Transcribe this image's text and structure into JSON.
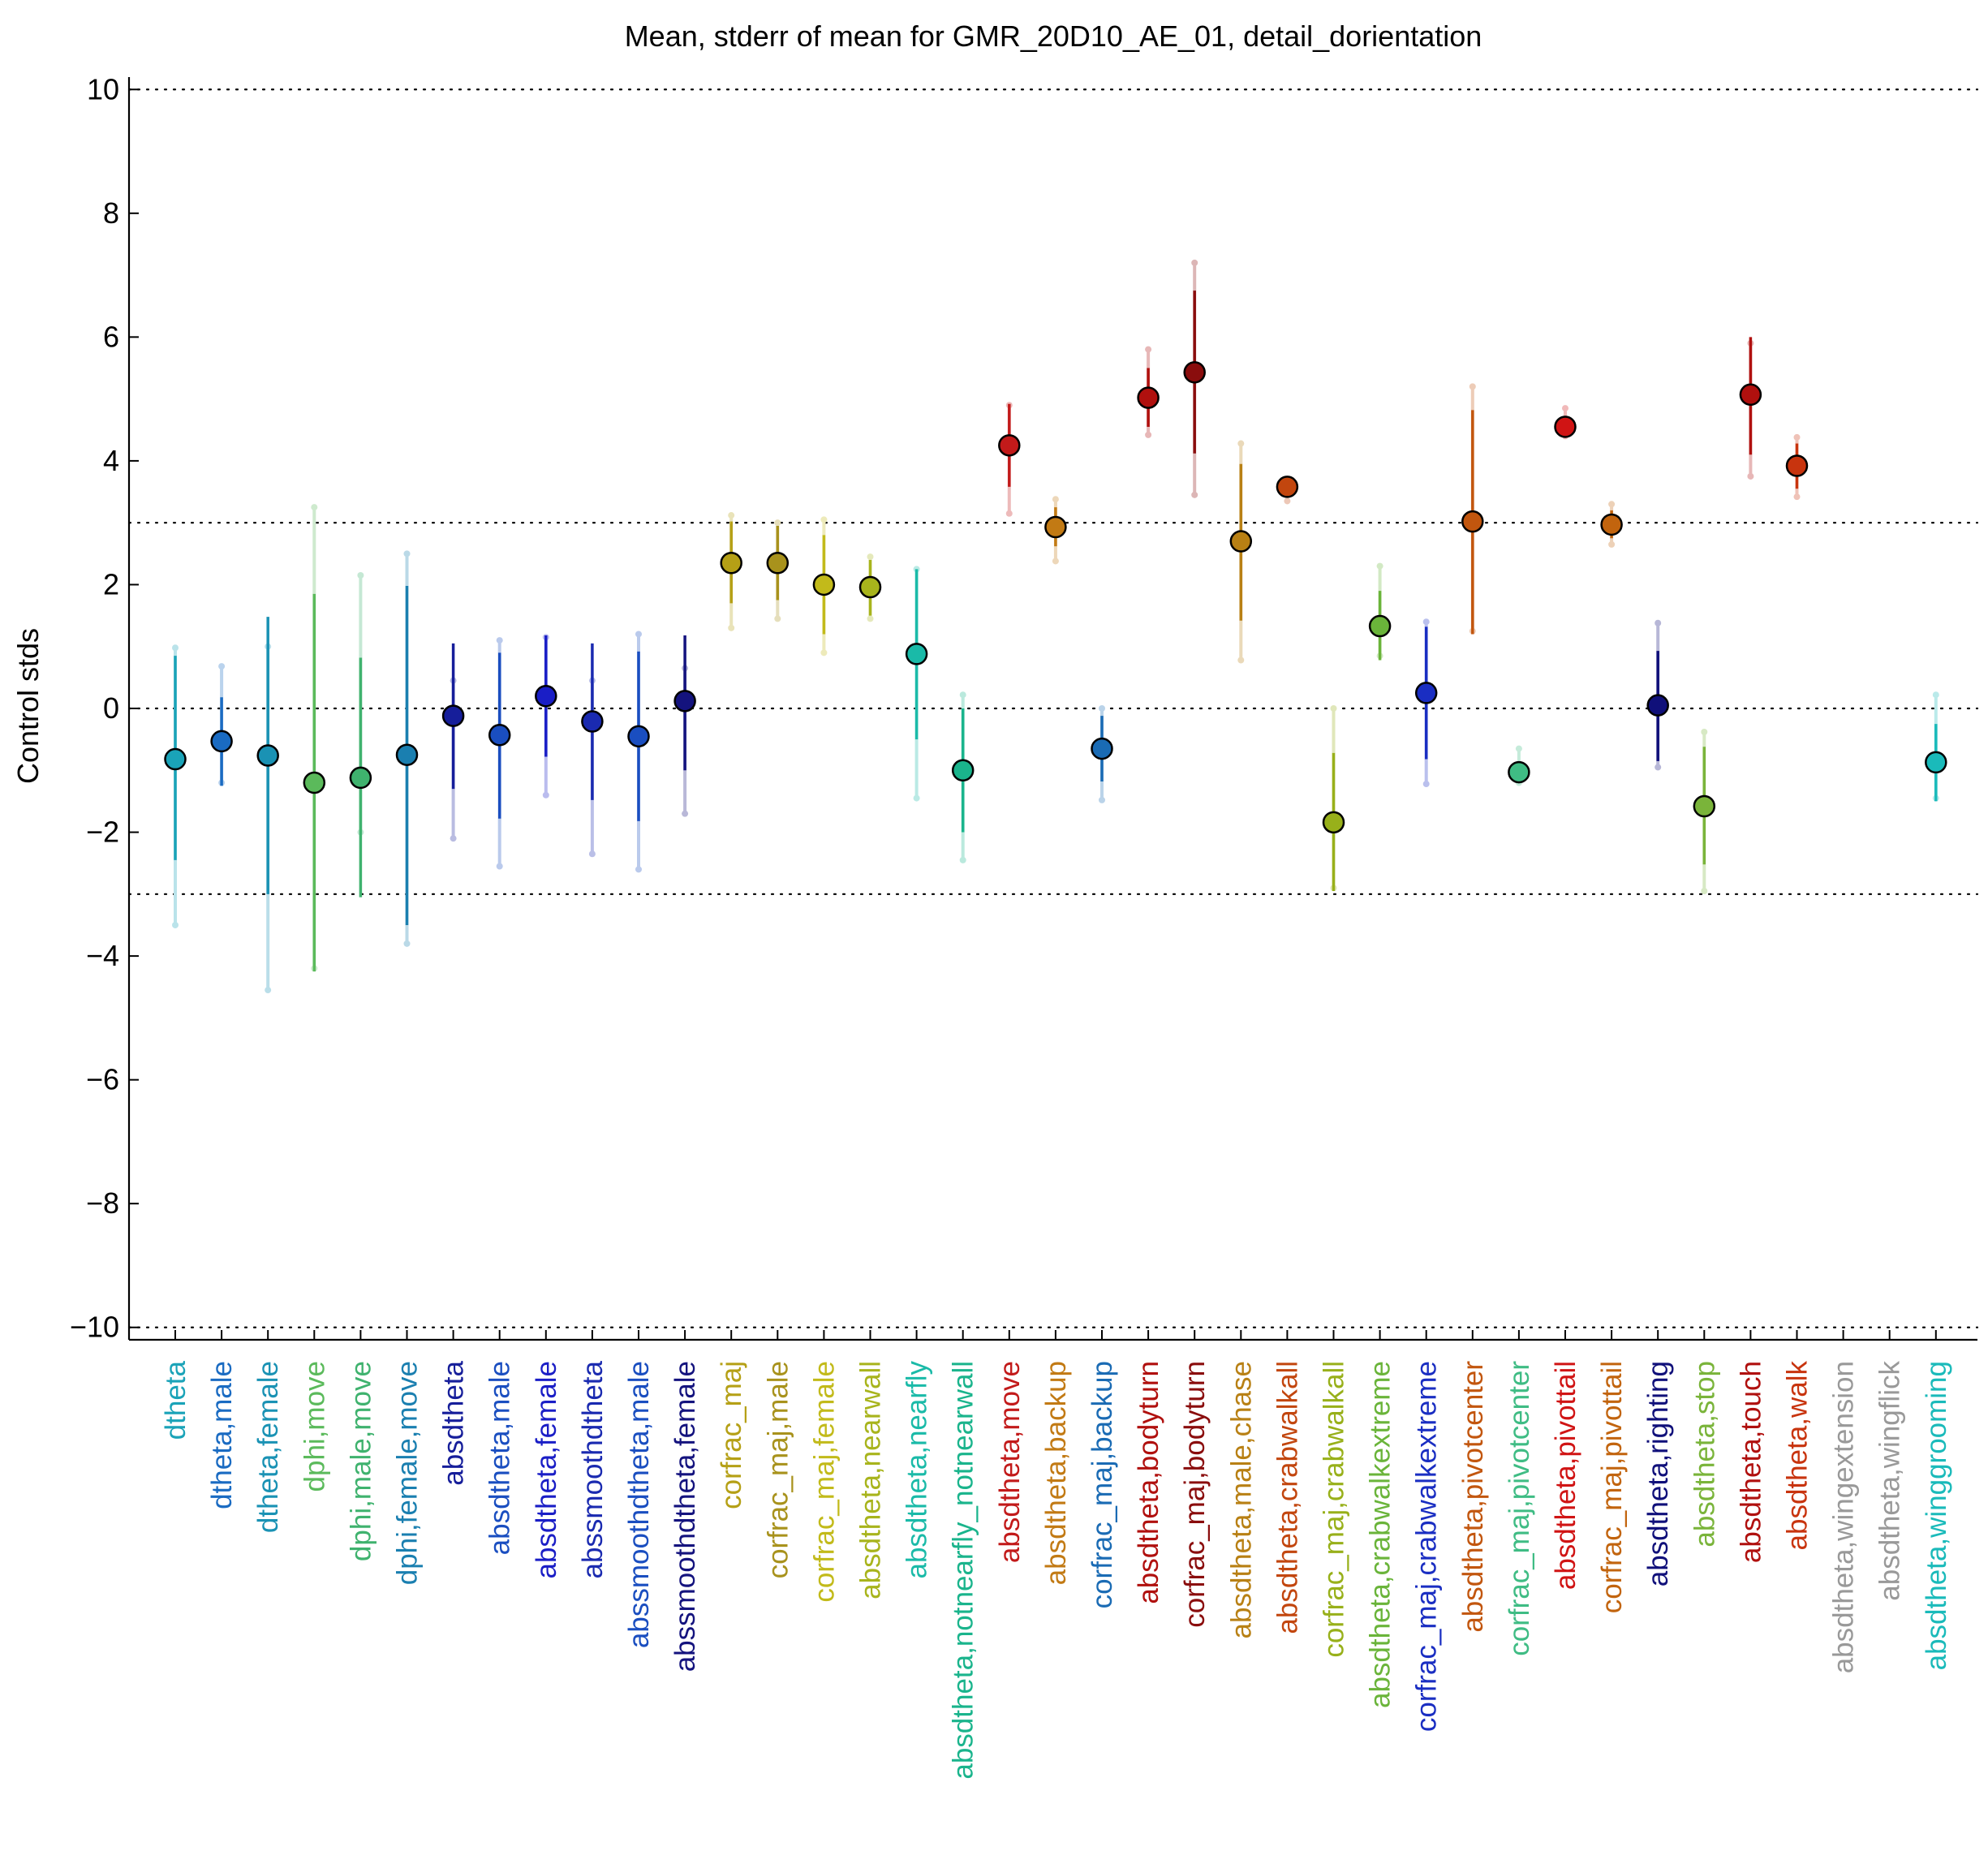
{
  "chart_data": {
    "type": "scatter",
    "title": "Mean, stderr of mean for GMR_20D10_AE_01, detail_dorientation",
    "xlabel": "",
    "ylabel": "Control stds",
    "ylim": [
      -10.2,
      10.2
    ],
    "yticks": [
      -10,
      -8,
      -6,
      -4,
      -2,
      0,
      2,
      4,
      6,
      8,
      10
    ],
    "ytick_labels": [
      "−10",
      "−8",
      "−6",
      "−4",
      "−2",
      "0",
      "2",
      "4",
      "6",
      "8",
      "10"
    ],
    "reference_lines": [
      -10,
      -3,
      0,
      3,
      10
    ],
    "grid": false,
    "legend": "none",
    "points": [
      {
        "label": "dtheta",
        "mean": -0.82,
        "se_low": -2.45,
        "se_high": 0.85,
        "lo": -3.5,
        "hi": 0.98,
        "color": "#1aa3b8"
      },
      {
        "label": "dtheta,male",
        "mean": -0.53,
        "se_low": -1.25,
        "se_high": 0.18,
        "lo": -1.2,
        "hi": 0.68,
        "color": "#1a6bc2"
      },
      {
        "label": "dtheta,female",
        "mean": -0.76,
        "se_low": -3.0,
        "se_high": 1.48,
        "lo": -4.55,
        "hi": 1.0,
        "color": "#1a92b4"
      },
      {
        "label": "dphi,move",
        "mean": -1.2,
        "se_low": -4.25,
        "se_high": 1.85,
        "lo": -4.2,
        "hi": 3.25,
        "color": "#5bba5b"
      },
      {
        "label": "dphi,male,move",
        "mean": -1.12,
        "se_low": -3.05,
        "se_high": 0.82,
        "lo": -2.0,
        "hi": 2.15,
        "color": "#3fb26e"
      },
      {
        "label": "dphi,female,move",
        "mean": -0.75,
        "se_low": -3.5,
        "se_high": 1.98,
        "lo": -3.8,
        "hi": 2.5,
        "color": "#1a7fb0"
      },
      {
        "label": "absdtheta",
        "mean": -0.12,
        "se_low": -1.3,
        "se_high": 1.05,
        "lo": -2.1,
        "hi": 0.45,
        "color": "#161e9a"
      },
      {
        "label": "absdtheta,male",
        "mean": -0.43,
        "se_low": -1.78,
        "se_high": 0.9,
        "lo": -2.55,
        "hi": 1.1,
        "color": "#1a4ec0"
      },
      {
        "label": "absdtheta,female",
        "mean": 0.2,
        "se_low": -0.78,
        "se_high": 1.18,
        "lo": -1.4,
        "hi": 1.15,
        "color": "#1a1ec6"
      },
      {
        "label": "abssmoothdtheta",
        "mean": -0.21,
        "se_low": -1.48,
        "se_high": 1.05,
        "lo": -2.35,
        "hi": 0.45,
        "color": "#1a2ab0"
      },
      {
        "label": "abssmoothdtheta,male",
        "mean": -0.45,
        "se_low": -1.82,
        "se_high": 0.92,
        "lo": -2.6,
        "hi": 1.2,
        "color": "#1a4ec0"
      },
      {
        "label": "abssmoothdtheta,female",
        "mean": 0.12,
        "se_low": -1.0,
        "se_high": 1.18,
        "lo": -1.7,
        "hi": 0.65,
        "color": "#14137e"
      },
      {
        "label": "corfrac_maj",
        "mean": 2.35,
        "se_low": 1.7,
        "se_high": 3.02,
        "lo": 1.3,
        "hi": 3.12,
        "color": "#b5a016"
      },
      {
        "label": "corfrac_maj,male",
        "mean": 2.35,
        "se_low": 1.75,
        "se_high": 2.95,
        "lo": 1.45,
        "hi": 3.0,
        "color": "#a8921c"
      },
      {
        "label": "corfrac_maj,female",
        "mean": 2.0,
        "se_low": 1.2,
        "se_high": 2.8,
        "lo": 0.9,
        "hi": 3.05,
        "color": "#c2ba1a"
      },
      {
        "label": "absdtheta,nearwall",
        "mean": 1.96,
        "se_low": 1.5,
        "se_high": 2.4,
        "lo": 1.45,
        "hi": 2.45,
        "color": "#a8b41c"
      },
      {
        "label": "absdtheta,nearfly",
        "mean": 0.88,
        "se_low": -0.5,
        "se_high": 2.25,
        "lo": -1.45,
        "hi": 2.25,
        "color": "#1abaa8"
      },
      {
        "label": "absdtheta,notnearfly_notnearwall",
        "mean": -1.0,
        "se_low": -2.0,
        "se_high": 0.0,
        "lo": -2.45,
        "hi": 0.22,
        "color": "#1ab48c"
      },
      {
        "label": "absdtheta,move",
        "mean": 4.25,
        "se_low": 3.58,
        "se_high": 4.92,
        "lo": 3.15,
        "hi": 4.9,
        "color": "#c21a1a"
      },
      {
        "label": "absdtheta,backup",
        "mean": 2.93,
        "se_low": 2.62,
        "se_high": 3.25,
        "lo": 2.38,
        "hi": 3.38,
        "color": "#c27a14"
      },
      {
        "label": "corfrac_maj,backup",
        "mean": -0.65,
        "se_low": -1.18,
        "se_high": -0.12,
        "lo": -1.48,
        "hi": 0.0,
        "color": "#1a6bb4"
      },
      {
        "label": "absdtheta,bodyturn",
        "mean": 5.02,
        "se_low": 4.55,
        "se_high": 5.5,
        "lo": 4.42,
        "hi": 5.8,
        "color": "#b0100e"
      },
      {
        "label": "corfrac_maj,bodyturn",
        "mean": 5.43,
        "se_low": 4.12,
        "se_high": 6.75,
        "lo": 3.45,
        "hi": 7.2,
        "color": "#8a0d0d"
      },
      {
        "label": "absdtheta,male,chase",
        "mean": 2.7,
        "se_low": 1.42,
        "se_high": 3.95,
        "lo": 0.78,
        "hi": 4.28,
        "color": "#b88014"
      },
      {
        "label": "absdtheta,crabwalkall",
        "mean": 3.58,
        "se_low": 3.45,
        "se_high": 3.72,
        "lo": 3.35,
        "hi": 3.7,
        "color": "#c2460e"
      },
      {
        "label": "corfrac_maj,crabwalkall",
        "mean": -1.84,
        "se_low": -2.95,
        "se_high": -0.72,
        "lo": -2.9,
        "hi": 0.0,
        "color": "#98b01a"
      },
      {
        "label": "absdtheta,crabwalkextreme",
        "mean": 1.33,
        "se_low": 0.78,
        "se_high": 1.9,
        "lo": 0.85,
        "hi": 2.3,
        "color": "#6ab43a"
      },
      {
        "label": "corfrac_maj,crabwalkextreme",
        "mean": 0.25,
        "se_low": -0.82,
        "se_high": 1.32,
        "lo": -1.22,
        "hi": 1.4,
        "color": "#1a2ec2"
      },
      {
        "label": "absdtheta,pivotcenter",
        "mean": 3.02,
        "se_low": 1.2,
        "se_high": 4.82,
        "lo": 1.25,
        "hi": 5.2,
        "color": "#c2560e"
      },
      {
        "label": "corfrac_maj,pivotcenter",
        "mean": -1.03,
        "se_low": -1.18,
        "se_high": -0.88,
        "lo": -1.2,
        "hi": -0.65,
        "color": "#3fbc84"
      },
      {
        "label": "absdtheta,pivottail",
        "mean": 4.55,
        "se_low": 4.45,
        "se_high": 4.65,
        "lo": 4.4,
        "hi": 4.85,
        "color": "#d01414"
      },
      {
        "label": "corfrac_maj,pivottail",
        "mean": 2.97,
        "se_low": 2.75,
        "se_high": 3.2,
        "lo": 2.65,
        "hi": 3.3,
        "color": "#c2640e"
      },
      {
        "label": "absdtheta,righting",
        "mean": 0.05,
        "se_low": -0.85,
        "se_high": 0.93,
        "lo": -0.95,
        "hi": 1.38,
        "color": "#10107a"
      },
      {
        "label": "absdtheta,stop",
        "mean": -1.58,
        "se_low": -2.52,
        "se_high": -0.62,
        "lo": -2.95,
        "hi": -0.38,
        "color": "#7ab43a"
      },
      {
        "label": "absdtheta,touch",
        "mean": 5.07,
        "se_low": 4.1,
        "se_high": 6.0,
        "lo": 3.75,
        "hi": 5.9,
        "color": "#b0100e"
      },
      {
        "label": "absdtheta,walk",
        "mean": 3.92,
        "se_low": 3.55,
        "se_high": 4.28,
        "lo": 3.42,
        "hi": 4.38,
        "color": "#c8340e"
      },
      {
        "label": "absdtheta,wingextension",
        "mean": null,
        "se_low": null,
        "se_high": null,
        "lo": null,
        "hi": null,
        "color": "#999999"
      },
      {
        "label": "absdtheta,wingflick",
        "mean": null,
        "se_low": null,
        "se_high": null,
        "lo": null,
        "hi": null,
        "color": "#999999"
      },
      {
        "label": "absdtheta,winggrooming",
        "mean": -0.87,
        "se_low": -1.5,
        "se_high": -0.25,
        "lo": -1.45,
        "hi": 0.22,
        "color": "#1ababa"
      }
    ]
  }
}
